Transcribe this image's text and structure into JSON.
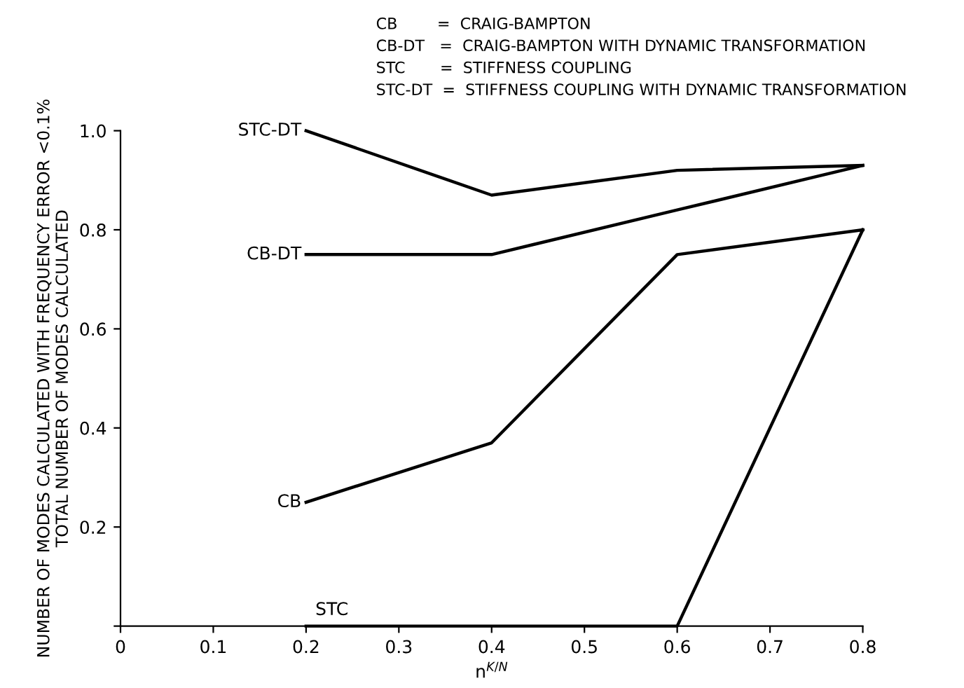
{
  "chart_data": {
    "type": "line",
    "xlabel": "n$^{K/N}$",
    "ylabel": "NUMBER OF MODES CALCULATED WITH FREQUENCY ERROR <0.1%\nTOTAL NUMBER OF MODES CALCULATED",
    "annotations": [
      "CB        =  CRAIG-BAMPTON",
      "CB-DT   =  CRAIG-BAMPTON WITH DYNAMIC TRANSFORMATION",
      "STC       =  STIFFNESS COUPLING",
      "STC-DT  =  STIFFNESS COUPLING WITH DYNAMIC TRANSFORMATION"
    ],
    "x": [
      0.2,
      0.4,
      0.6,
      0.8
    ],
    "series": [
      {
        "name": "STC-DT",
        "color": "#000000",
        "values": [
          1.0,
          0.87,
          0.92,
          0.93
        ]
      },
      {
        "name": "CB-DT",
        "color": "#000000",
        "values": [
          0.75,
          0.75,
          0.84,
          0.93
        ]
      },
      {
        "name": "CB",
        "color": "#000000",
        "values": [
          0.25,
          0.37,
          0.75,
          0.8
        ]
      },
      {
        "name": "STC",
        "color": "#000000",
        "values": [
          0,
          0,
          0,
          0.8
        ]
      }
    ],
    "xlim": [
      0,
      0.8
    ],
    "ylim": [
      0,
      1.0
    ],
    "xticks": [
      0,
      0.1,
      0.2,
      0.3,
      0.4,
      0.5,
      0.6,
      0.7,
      0.8
    ],
    "yticks": [
      {
        "value": 0,
        "label": null
      },
      0.2,
      0.4,
      0.6,
      0.8,
      {
        "value": 1.0,
        "label": "1.0"
      }
    ],
    "grid": false,
    "legend": false,
    "marker": "none",
    "line_style": "solid"
  }
}
